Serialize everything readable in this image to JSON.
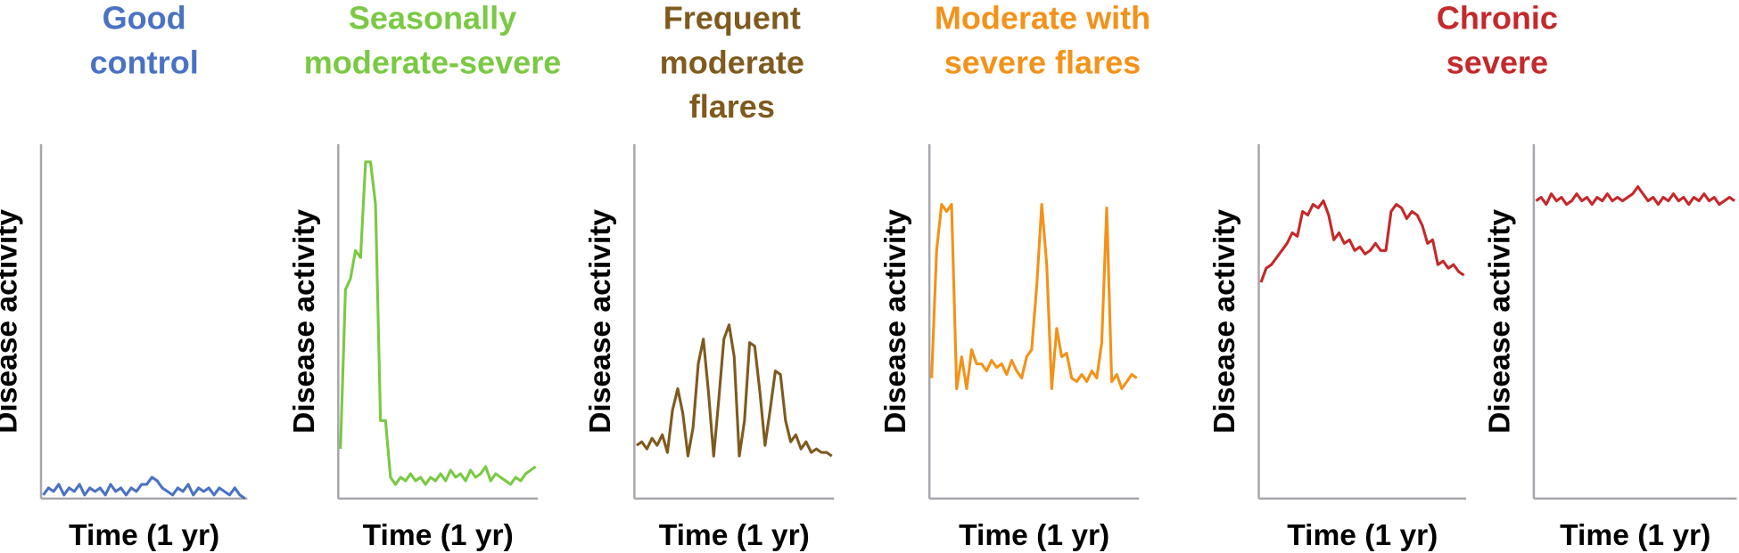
{
  "chart_data": [
    {
      "type": "line",
      "title": [
        "Good",
        "control"
      ],
      "y_label": "Disease activity",
      "x_label": "Time (1 yr)",
      "color": "#4a72c4",
      "ylim": [
        0,
        100
      ],
      "values": [
        1,
        3,
        2,
        4,
        1,
        3,
        2,
        4,
        1,
        3,
        2,
        3,
        1,
        4,
        2,
        3,
        1,
        3,
        2,
        4,
        4,
        6,
        5,
        3,
        2,
        1,
        3,
        2,
        4,
        1,
        3,
        2,
        3,
        1,
        3,
        2,
        1,
        3,
        1,
        0
      ]
    },
    {
      "type": "line",
      "title": [
        "Seasonally",
        "moderate-severe"
      ],
      "y_label": "Disease activity",
      "x_label": "Time (1 yr)",
      "color": "#7ac943",
      "ylim": [
        0,
        100
      ],
      "values": [
        14,
        59,
        62,
        70,
        68,
        95,
        95,
        83,
        22,
        22,
        6,
        4,
        6,
        5,
        7,
        5,
        6,
        4,
        6,
        5,
        7,
        5,
        8,
        6,
        7,
        5,
        8,
        6,
        7,
        9,
        5,
        7,
        6,
        5,
        4,
        6,
        5,
        7,
        8,
        9
      ]
    },
    {
      "type": "line",
      "title": [
        "Frequent",
        "moderate",
        "flares"
      ],
      "y_label": "Disease activity",
      "x_label": "Time (1 yr)",
      "color": "#7f5a1e",
      "ylim": [
        0,
        100
      ],
      "values": [
        15,
        16,
        14,
        17,
        15,
        18,
        13,
        25,
        31,
        24,
        12,
        20,
        38,
        45,
        30,
        12,
        28,
        45,
        49,
        40,
        12,
        22,
        44,
        43,
        30,
        15,
        25,
        36,
        35,
        22,
        16,
        18,
        14,
        16,
        13,
        14,
        13,
        13,
        12
      ]
    },
    {
      "type": "line",
      "title": [
        "Moderate with",
        "severe flares"
      ],
      "y_label": "Disease activity",
      "x_label": "Time (1 yr)",
      "color": "#f39219",
      "ylim": [
        0,
        100
      ],
      "values": [
        34,
        70,
        83,
        81,
        83,
        31,
        40,
        31,
        42,
        38,
        38,
        36,
        39,
        37,
        38,
        35,
        39,
        36,
        34,
        40,
        42,
        60,
        83,
        66,
        31,
        48,
        40,
        41,
        34,
        33,
        35,
        33,
        36,
        34,
        44,
        82,
        33,
        35,
        31,
        33,
        35,
        34
      ]
    },
    {
      "type": "line",
      "title": [
        "Chronic",
        "severe"
      ],
      "y_label": "Disease activity",
      "x_label": "Time (1 yr)",
      "color": "#c4292b",
      "ylim": [
        0,
        100
      ],
      "values": [
        61,
        65,
        66,
        68,
        70,
        72,
        75,
        74,
        81,
        80,
        83,
        82,
        84,
        80,
        73,
        75,
        72,
        73,
        70,
        71,
        69,
        70,
        72,
        70,
        70,
        81,
        83,
        82,
        79,
        81,
        80,
        77,
        72,
        73,
        66,
        67,
        65,
        66,
        64,
        63
      ]
    },
    {
      "type": "line",
      "y_label": "Disease activity",
      "x_label": "Time (1 yr)",
      "color": "#c4292b",
      "ylim": [
        0,
        100
      ],
      "values": [
        84,
        85,
        83,
        86,
        84,
        85,
        83,
        84,
        86,
        84,
        85,
        83,
        85,
        84,
        86,
        84,
        85,
        84,
        85,
        86,
        88,
        86,
        84,
        85,
        83,
        85,
        84,
        86,
        84,
        85,
        83,
        85,
        84,
        86,
        84,
        85,
        83,
        84,
        85,
        84
      ]
    }
  ]
}
